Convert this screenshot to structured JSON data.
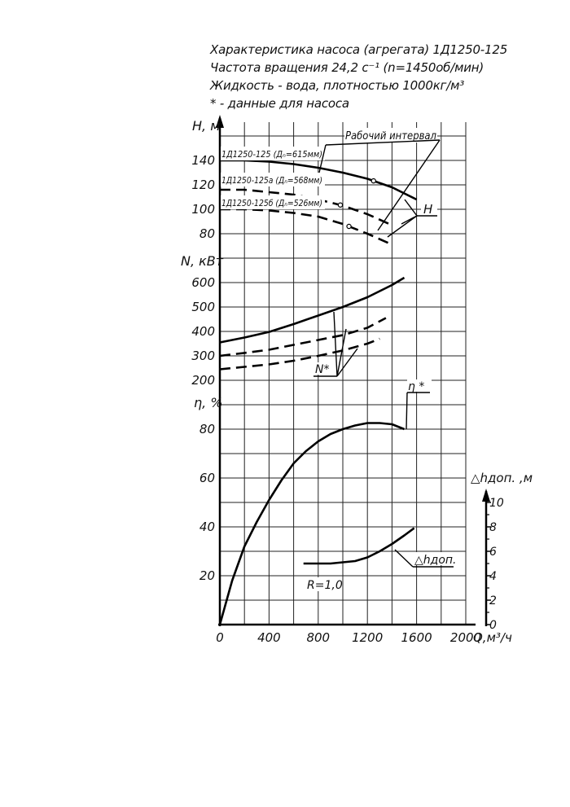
{
  "header": {
    "line1": "Характеристика насоса (агрегата) 1Д1250-125",
    "line2": "Частота вращения 24,2 с⁻¹ (n=1450об/мин)",
    "line3": "Жидкость - вода, плотностью 1000кг/м³",
    "line4": "* - данные для насоса"
  },
  "chart_data": {
    "type": "line",
    "x_axis": {
      "label": "Q,м³/ч",
      "range": [
        0,
        2000
      ],
      "ticks": [
        0,
        400,
        800,
        1200,
        1600,
        2000
      ]
    },
    "annotations": {
      "working_range": "Рабочий интервал",
      "r_value": "R=1,0"
    },
    "panels": [
      {
        "id": "head",
        "axis_label": "Н, м",
        "range": [
          80,
          140
        ],
        "ticks": [
          80,
          100,
          120,
          140
        ],
        "legend_label": "Н",
        "series": [
          {
            "name": "1Д1250-125 (Дₙ=615мм)",
            "style": "solid",
            "x": [
              0,
              200,
              400,
              600,
              800,
              1000,
              1200,
              1400,
              1600
            ],
            "y": [
              140,
              140,
              139,
              137,
              134,
              130,
              125,
              118,
              108
            ],
            "marker_x": 1250
          },
          {
            "name": "1Д1250-125а (Дₙ=568мм)",
            "style": "dashed",
            "x": [
              0,
              200,
              400,
              600,
              800,
              1000,
              1200,
              1400
            ],
            "y": [
              116,
              116,
              114,
              112,
              108,
              103,
              96,
              87
            ],
            "marker_x": 980
          },
          {
            "name": "1Д1250-125б (Дₙ=526мм)",
            "style": "dashed",
            "x": [
              0,
              200,
              400,
              600,
              800,
              1000,
              1200,
              1380
            ],
            "y": [
              100,
              100,
              99,
              97,
              94,
              88,
              80,
              72
            ],
            "marker_x": 1050
          }
        ]
      },
      {
        "id": "power",
        "axis_label": "N, кВт",
        "range": [
          200,
          600
        ],
        "ticks": [
          200,
          300,
          400,
          500,
          600
        ],
        "legend_label": "N*",
        "series": [
          {
            "name": "1Д1250-125",
            "style": "solid",
            "x": [
              0,
              200,
              400,
              600,
              800,
              1000,
              1200,
              1400,
              1500
            ],
            "y": [
              355,
              375,
              398,
              430,
              465,
              500,
              540,
              590,
              620
            ]
          },
          {
            "name": "1Д1250-125а",
            "style": "dashed",
            "x": [
              0,
              200,
              400,
              600,
              800,
              1000,
              1200,
              1350
            ],
            "y": [
              300,
              312,
              325,
              345,
              365,
              385,
              415,
              455
            ]
          },
          {
            "name": "1Д1250-125б",
            "style": "dashed",
            "x": [
              0,
              200,
              400,
              600,
              800,
              1000,
              1200,
              1300
            ],
            "y": [
              245,
              255,
              265,
              280,
              300,
              322,
              350,
              370
            ]
          }
        ]
      },
      {
        "id": "efficiency",
        "axis_label": "η, %",
        "range": [
          0,
          80
        ],
        "ticks": [
          20,
          40,
          60,
          80
        ],
        "legend_label": "η *",
        "series": [
          {
            "name": "η",
            "style": "solid",
            "x": [
              0,
              100,
              200,
              300,
              400,
              500,
              600,
              700,
              800,
              900,
              1000,
              1100,
              1200,
              1300,
              1400,
              1500
            ],
            "y": [
              0,
              18,
              32,
              42,
              51,
              59,
              66,
              71,
              75,
              78,
              80,
              81.5,
              82.5,
              82.5,
              82,
              80
            ]
          }
        ]
      },
      {
        "id": "npsh",
        "axis_label": "△hдоп. ,м",
        "range": [
          0,
          10
        ],
        "ticks": [
          0,
          2,
          4,
          6,
          8,
          10
        ],
        "legend_label": "△hдоп.",
        "series": [
          {
            "name": "△hдоп.",
            "style": "solid",
            "x": [
              680,
              800,
              900,
              1000,
              1100,
              1200,
              1300,
              1400,
              1500,
              1580
            ],
            "y": [
              5,
              5,
              5,
              5.1,
              5.2,
              5.5,
              6,
              6.6,
              7.3,
              7.9
            ]
          }
        ]
      }
    ]
  }
}
